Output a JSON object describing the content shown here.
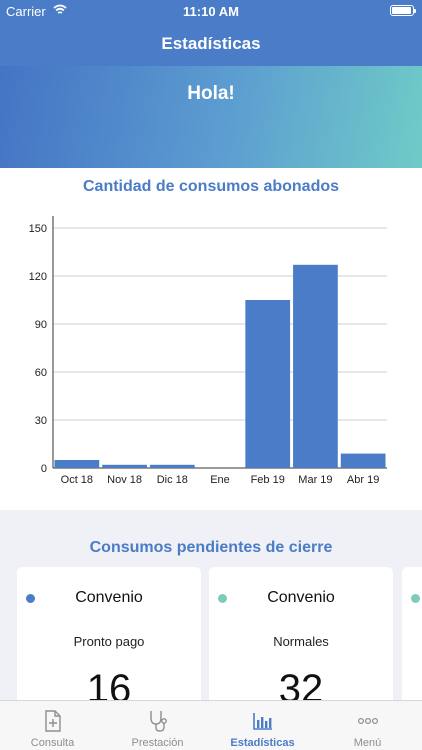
{
  "status_bar": {
    "carrier": "Carrier",
    "time": "11:10 AM"
  },
  "nav": {
    "title": "Estadísticas"
  },
  "hero": {
    "greeting": "Hola!"
  },
  "chart_data": {
    "type": "bar",
    "title": "Cantidad de consumos abonados",
    "categories": [
      "Oct 18",
      "Nov 18",
      "Dic 18",
      "Ene",
      "Feb 19",
      "Mar 19",
      "Abr 19"
    ],
    "values": [
      5,
      2,
      2,
      0,
      105,
      127,
      9
    ],
    "yticks": [
      0,
      30,
      60,
      90,
      120,
      150
    ],
    "ylim": [
      0,
      150
    ],
    "grid": true,
    "bar_color": "#4a7cc7"
  },
  "pending": {
    "title": "Consumos pendientes de cierre",
    "cards": [
      {
        "title": "Convenio",
        "subtitle": "Pronto pago",
        "value": "16",
        "dot_color": "#4a7cc7"
      },
      {
        "title": "Convenio",
        "subtitle": "Normales",
        "value": "32",
        "dot_color": "#7ecbbe"
      },
      {
        "title": "",
        "subtitle": "",
        "value": "",
        "dot_color": "#7ecbbe"
      }
    ]
  },
  "tabs": [
    {
      "label": "Consulta",
      "icon": "document-plus-icon",
      "active": false
    },
    {
      "label": "Prestación",
      "icon": "stethoscope-icon",
      "active": false
    },
    {
      "label": "Estadísticas",
      "icon": "bar-chart-icon",
      "active": true
    },
    {
      "label": "Menú",
      "icon": "more-dots-icon",
      "active": false
    }
  ],
  "colors": {
    "accent": "#4a7cc7",
    "teal": "#6fcbc7",
    "inactive": "#8e8e93"
  }
}
